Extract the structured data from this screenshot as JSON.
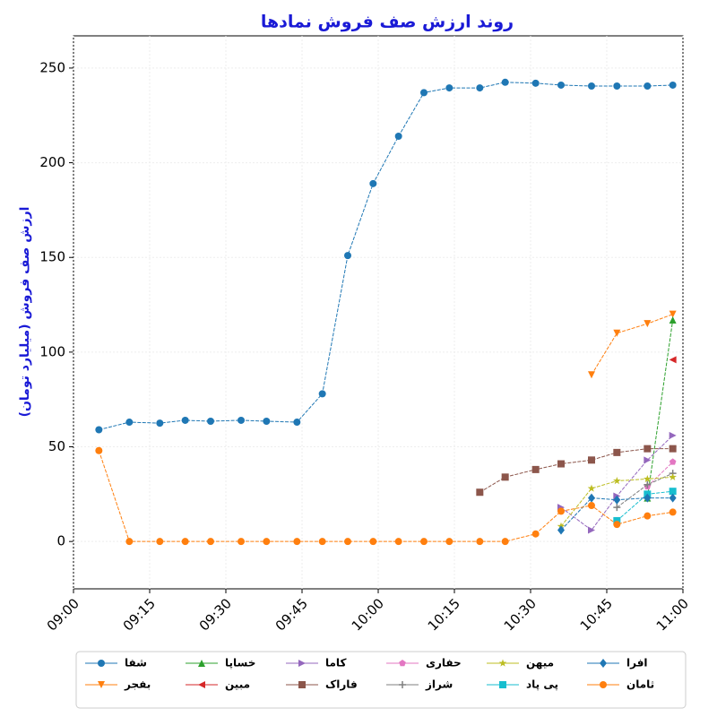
{
  "chart_data": {
    "type": "line",
    "title": "روند ارزش صف فروش نمادها",
    "y_label": "ارزش صف فروش (میلیارد تومان)",
    "x": [
      "09:05",
      "09:11",
      "09:17",
      "09:22",
      "09:27",
      "09:33",
      "09:38",
      "09:44",
      "09:49",
      "09:54",
      "09:59",
      "10:04",
      "10:09",
      "10:14",
      "10:20",
      "10:25",
      "10:31",
      "10:36",
      "10:42",
      "10:47",
      "10:53",
      "10:58"
    ],
    "xlim": [
      "09:00",
      "11:00"
    ],
    "xticks": [
      "09:00",
      "09:15",
      "09:30",
      "09:45",
      "10:00",
      "10:15",
      "10:30",
      "10:45",
      "11:00"
    ],
    "ylim": [
      -25,
      267
    ],
    "yticks": [
      0,
      50,
      100,
      150,
      200,
      250
    ],
    "grid": true,
    "series": [
      {
        "name": "شفا",
        "color": "#1f77b4",
        "marker": "circle",
        "values": [
          59,
          63,
          62.5,
          64,
          63.5,
          64,
          63.5,
          63,
          78,
          151,
          189,
          214,
          237,
          239.5,
          239.5,
          242.5,
          242,
          241,
          240.5,
          240.5,
          240.5,
          241
        ]
      },
      {
        "name": "بفجر",
        "color": "#ff7f0e",
        "marker": "triangle-down",
        "values": [
          null,
          null,
          null,
          null,
          null,
          null,
          null,
          null,
          null,
          null,
          null,
          null,
          null,
          null,
          null,
          null,
          null,
          null,
          88,
          110,
          115,
          120
        ]
      },
      {
        "name": "خساپا",
        "color": "#2ca02c",
        "marker": "triangle-up",
        "values": [
          null,
          null,
          null,
          null,
          null,
          null,
          null,
          null,
          null,
          null,
          null,
          null,
          null,
          null,
          null,
          null,
          null,
          null,
          null,
          null,
          23,
          117
        ]
      },
      {
        "name": "مبین",
        "color": "#d62728",
        "marker": "triangle-left",
        "values": [
          null,
          null,
          null,
          null,
          null,
          null,
          null,
          null,
          null,
          null,
          null,
          null,
          null,
          null,
          null,
          null,
          null,
          null,
          null,
          null,
          null,
          96
        ]
      },
      {
        "name": "کاما",
        "color": "#9467bd",
        "marker": "triangle-right",
        "values": [
          null,
          null,
          null,
          null,
          null,
          null,
          null,
          null,
          null,
          null,
          null,
          null,
          null,
          null,
          null,
          null,
          null,
          18,
          6,
          24,
          43,
          56
        ]
      },
      {
        "name": "فاراک",
        "color": "#8c564b",
        "marker": "square",
        "values": [
          null,
          null,
          null,
          null,
          null,
          null,
          null,
          null,
          null,
          null,
          null,
          null,
          null,
          null,
          26,
          34,
          38,
          41,
          43,
          47,
          49,
          49
        ]
      },
      {
        "name": "حفاری",
        "color": "#e377c2",
        "marker": "pentagon",
        "values": [
          null,
          null,
          null,
          null,
          null,
          null,
          null,
          null,
          null,
          null,
          null,
          null,
          null,
          null,
          null,
          null,
          null,
          null,
          null,
          null,
          29,
          42
        ]
      },
      {
        "name": "شراز",
        "color": "#7f7f7f",
        "marker": "plus",
        "values": [
          null,
          null,
          null,
          null,
          null,
          null,
          null,
          null,
          null,
          null,
          null,
          null,
          null,
          null,
          null,
          null,
          null,
          null,
          null,
          18,
          30,
          36
        ]
      },
      {
        "name": "میهن",
        "color": "#bcbd22",
        "marker": "star",
        "values": [
          null,
          null,
          null,
          null,
          null,
          null,
          null,
          null,
          null,
          null,
          null,
          null,
          null,
          null,
          null,
          null,
          null,
          8,
          28,
          32,
          33,
          34
        ]
      },
      {
        "name": "پی پاد",
        "color": "#17becf",
        "marker": "square",
        "values": [
          null,
          null,
          null,
          null,
          null,
          null,
          null,
          null,
          null,
          null,
          null,
          null,
          null,
          null,
          null,
          null,
          null,
          null,
          null,
          11,
          25,
          26.5
        ]
      },
      {
        "name": "افرا",
        "color": "#1f77b4",
        "marker": "diamond",
        "values": [
          null,
          null,
          null,
          null,
          null,
          null,
          null,
          null,
          null,
          null,
          null,
          null,
          null,
          null,
          null,
          null,
          null,
          6,
          23,
          22,
          23,
          23
        ]
      },
      {
        "name": "ثامان",
        "color": "#ff7f0e",
        "marker": "circle",
        "values": [
          48,
          0,
          0,
          0,
          0,
          0,
          0,
          0,
          0,
          0,
          0,
          0,
          0,
          0,
          0,
          0,
          4,
          16,
          19,
          9,
          13.5,
          15.5
        ]
      }
    ]
  }
}
